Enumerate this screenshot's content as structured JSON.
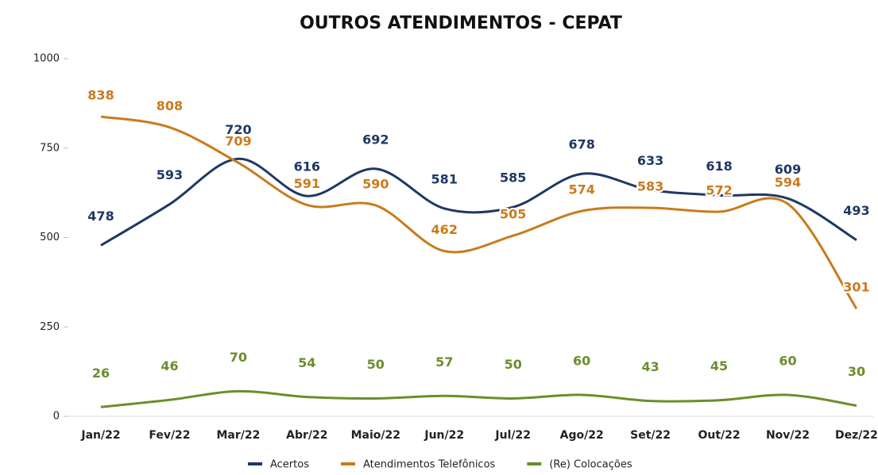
{
  "chart_data": {
    "type": "line",
    "title": "OUTROS ATENDIMENTOS - CEPAT",
    "categories": [
      "Jan/22",
      "Fev/22",
      "Mar/22",
      "Abr/22",
      "Maio/22",
      "Jun/22",
      "Jul/22",
      "Ago/22",
      "Set/22",
      "Out/22",
      "Nov/22",
      "Dez/22"
    ],
    "series": [
      {
        "name": "Acertos",
        "color": "#1f3864",
        "values": [
          478,
          593,
          720,
          616,
          692,
          581,
          585,
          678,
          633,
          618,
          609,
          493
        ]
      },
      {
        "name": "Atendimentos Telefônicos",
        "color": "#c97b1c",
        "values": [
          838,
          808,
          709,
          591,
          590,
          462,
          505,
          574,
          583,
          572,
          594,
          301
        ]
      },
      {
        "name": "(Re) Colocações",
        "color": "#6b8e2b",
        "values": [
          26,
          46,
          70,
          54,
          50,
          57,
          50,
          60,
          43,
          45,
          60,
          30
        ]
      }
    ],
    "ylim": [
      0,
      1000
    ],
    "yticks": [
      0,
      250,
      500,
      750,
      1000
    ],
    "grid": false,
    "legend": "bottom"
  }
}
